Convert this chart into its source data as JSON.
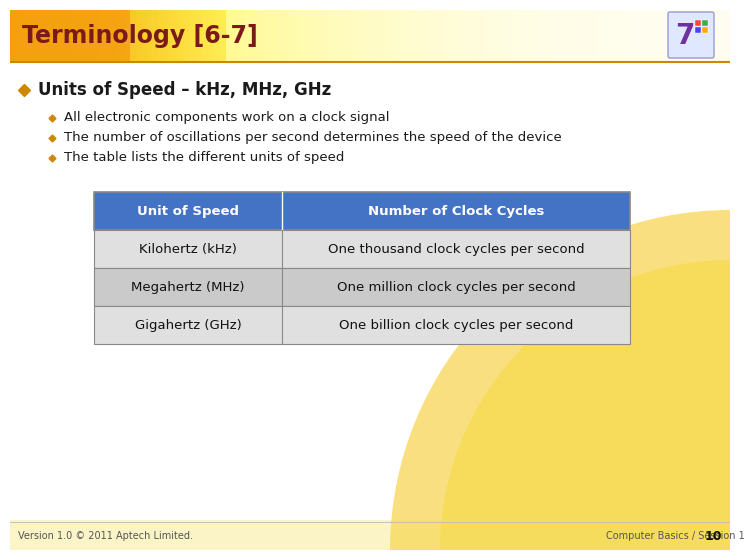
{
  "title": "Terminology [6-7]",
  "title_color": "#7B1A1A",
  "title_fontsize": 17,
  "bg_color": "#FFFFFF",
  "main_bullet": "Units of Speed – kHz, MHz, GHz",
  "main_bullet_color": "#1A1A1A",
  "main_bullet_fontsize": 12,
  "sub_bullets": [
    "All electronic components work on a clock signal",
    "The number of oscillations per second determines the speed of the device",
    "The table lists the different units of speed"
  ],
  "sub_bullet_fontsize": 9.5,
  "sub_bullet_color": "#1A1A1A",
  "table_header": [
    "Unit of Speed",
    "Number of Clock Cycles"
  ],
  "table_rows": [
    [
      "Kilohertz (kHz)",
      "One thousand clock cycles per second"
    ],
    [
      "Megahertz (MHz)",
      "One million clock cycles per second"
    ],
    [
      "Gigahertz (GHz)",
      "One billion clock cycles per second"
    ]
  ],
  "table_header_bg": "#4472C4",
  "table_header_fg": "#FFFFFF",
  "table_row_bg_1": "#E0E0E0",
  "table_row_bg_2": "#CACACA",
  "table_border_color": "#888888",
  "table_fontsize": 9.5,
  "footer_left": "Version 1.0 © 2011 Aptech Limited.",
  "footer_right": "Computer Basics / Session 1",
  "footer_page": "10",
  "footer_fontsize": 7,
  "footer_color": "#555555",
  "header_line_color": "#CC8800",
  "diamond_color": "#CC8800",
  "sub_diamond_color": "#CC8800",
  "header_bg_left": "#F0A020",
  "header_bg_right": "#FFF8E0"
}
